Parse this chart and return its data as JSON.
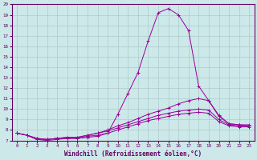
{
  "bg_color": "#cce8e8",
  "line_color": "#990099",
  "grid_color": "#aacccc",
  "xlabel": "Windchill (Refroidissement éolien,°C)",
  "xlabel_color": "#660066",
  "tick_color": "#660066",
  "xlim": [
    -0.5,
    23.5
  ],
  "ylim": [
    7,
    20
  ],
  "yticks": [
    7,
    8,
    9,
    10,
    11,
    12,
    13,
    14,
    15,
    16,
    17,
    18,
    19,
    20
  ],
  "xticks": [
    0,
    1,
    2,
    3,
    4,
    5,
    6,
    7,
    8,
    9,
    10,
    11,
    12,
    13,
    14,
    15,
    16,
    17,
    18,
    19,
    20,
    21,
    22,
    23
  ],
  "line1_x": [
    0,
    1,
    2,
    3,
    4,
    5,
    6,
    7,
    8,
    9,
    10,
    11,
    12,
    13,
    14,
    15,
    16,
    17,
    18,
    19,
    20,
    21,
    22,
    23
  ],
  "line1_y": [
    7.7,
    7.5,
    7.1,
    7.1,
    7.2,
    7.2,
    7.2,
    7.3,
    7.4,
    7.7,
    9.5,
    11.5,
    13.5,
    16.5,
    19.2,
    19.6,
    19.0,
    17.5,
    12.2,
    10.8,
    9.3,
    8.6,
    8.5,
    8.5
  ],
  "line2_x": [
    0,
    1,
    2,
    3,
    4,
    5,
    6,
    7,
    8,
    9,
    10,
    11,
    12,
    13,
    14,
    15,
    16,
    17,
    18,
    19,
    20,
    21,
    22,
    23
  ],
  "line2_y": [
    7.7,
    7.5,
    7.2,
    7.1,
    7.2,
    7.3,
    7.3,
    7.5,
    7.7,
    8.0,
    8.4,
    8.7,
    9.1,
    9.5,
    9.8,
    10.1,
    10.5,
    10.8,
    11.0,
    10.8,
    9.4,
    8.6,
    8.5,
    8.4
  ],
  "line3_x": [
    0,
    1,
    2,
    3,
    4,
    5,
    6,
    7,
    8,
    9,
    10,
    11,
    12,
    13,
    14,
    15,
    16,
    17,
    18,
    19,
    20,
    21,
    22,
    23
  ],
  "line3_y": [
    7.7,
    7.5,
    7.2,
    7.1,
    7.2,
    7.3,
    7.3,
    7.5,
    7.7,
    7.9,
    8.2,
    8.5,
    8.8,
    9.1,
    9.4,
    9.6,
    9.8,
    9.9,
    10.0,
    9.9,
    9.0,
    8.5,
    8.4,
    8.4
  ],
  "line4_x": [
    0,
    1,
    2,
    3,
    4,
    5,
    6,
    7,
    8,
    9,
    10,
    11,
    12,
    13,
    14,
    15,
    16,
    17,
    18,
    19,
    20,
    21,
    22,
    23
  ],
  "line4_y": [
    7.7,
    7.5,
    7.1,
    7.0,
    7.1,
    7.2,
    7.2,
    7.4,
    7.5,
    7.7,
    8.0,
    8.3,
    8.6,
    8.9,
    9.1,
    9.3,
    9.5,
    9.6,
    9.7,
    9.6,
    8.8,
    8.4,
    8.3,
    8.3
  ],
  "figsize": [
    3.2,
    2.0
  ],
  "dpi": 100
}
